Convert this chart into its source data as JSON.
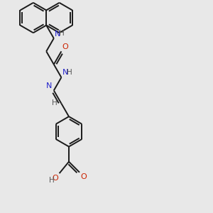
{
  "bg_color": "#e8e8e8",
  "bond_color": "#1a1a1a",
  "N_color": "#2222cc",
  "O_color": "#cc2200",
  "H_color": "#555555",
  "lw": 1.4,
  "figsize": [
    3.0,
    3.0
  ],
  "dpi": 100,
  "xlim": [
    0,
    10
  ],
  "ylim": [
    0,
    10
  ]
}
